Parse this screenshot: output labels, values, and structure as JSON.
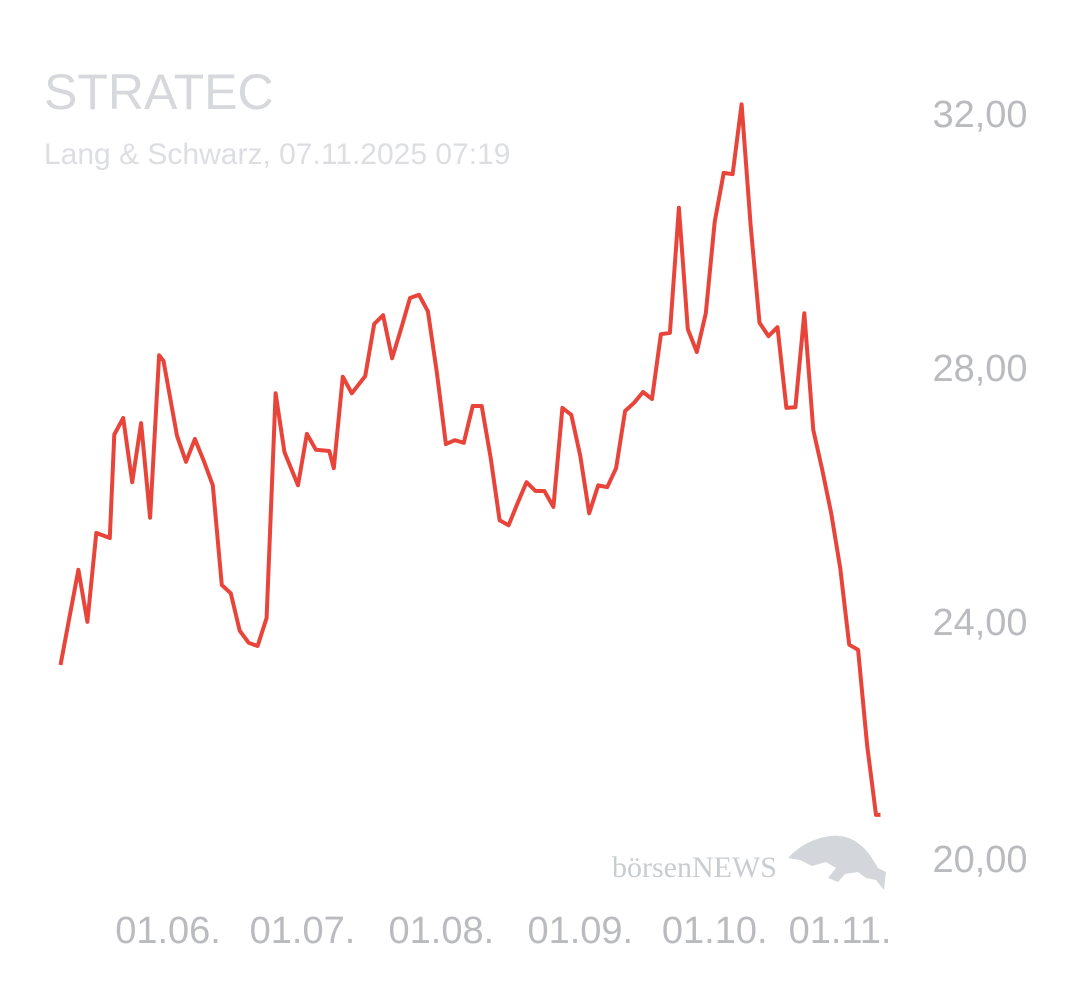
{
  "chart_data": {
    "type": "line",
    "title": "STRATEC",
    "subtitle": "Lang & Schwarz, 07.11.2025 07:19",
    "watermark": "börsenNEWS",
    "x": [
      "08.05.",
      "12.05.",
      "14.05.",
      "16.05.",
      "19.05.",
      "20.05.",
      "22.05.",
      "24.05.",
      "26.05.",
      "28.05.",
      "30.05.",
      "31.05.",
      "03.06.",
      "05.06.",
      "07.06.",
      "09.06.",
      "11.06.",
      "13.06.",
      "15.06.",
      "17.06.",
      "19.06.",
      "21.06.",
      "23.06.",
      "25.06.",
      "27.06.",
      "30.06.",
      "02.07.",
      "04.07.",
      "07.07.",
      "08.07.",
      "10.07.",
      "12.07.",
      "15.07.",
      "17.07.",
      "19.07.",
      "21.07.",
      "23.07.",
      "25.07.",
      "27.07.",
      "29.07.",
      "31.07.",
      "02.08.",
      "04.08.",
      "06.08.",
      "08.08.",
      "10.08.",
      "12.08.",
      "14.08.",
      "16.08.",
      "18.08.",
      "20.08.",
      "22.08.",
      "24.08.",
      "26.08.",
      "28.08.",
      "30.08.",
      "01.09.",
      "03.09.",
      "05.09.",
      "07.09.",
      "09.09.",
      "11.09.",
      "13.09.",
      "15.09.",
      "17.09.",
      "19.09.",
      "21.09.",
      "23.09.",
      "25.09.",
      "27.09.",
      "29.09.",
      "01.10.",
      "03.10.",
      "05.10.",
      "07.10.",
      "09.10.",
      "11.10.",
      "13.10.",
      "15.10.",
      "17.10.",
      "19.10.",
      "21.10.",
      "23.10.",
      "25.10.",
      "27.10.",
      "29.10.",
      "31.10.",
      "02.11.",
      "04.11.",
      "06.11.",
      "07.11."
    ],
    "series": [
      {
        "name": "STRATEC",
        "color": "#e8443a",
        "values": [
          23.37,
          24.87,
          24.05,
          25.45,
          25.37,
          27.0,
          27.26,
          26.25,
          27.18,
          25.69,
          28.25,
          28.16,
          26.98,
          26.57,
          26.93,
          26.58,
          26.2,
          24.63,
          24.5,
          23.91,
          23.72,
          23.67,
          24.11,
          27.65,
          26.72,
          26.2,
          27.01,
          26.76,
          26.74,
          26.47,
          27.91,
          27.65,
          27.92,
          28.74,
          28.88,
          28.2,
          28.66,
          29.15,
          29.2,
          28.94,
          27.97,
          26.85,
          26.91,
          26.87,
          27.45,
          27.45,
          26.63,
          25.65,
          25.57,
          25.92,
          26.25,
          26.11,
          26.11,
          25.86,
          27.42,
          27.31,
          26.66,
          25.76,
          26.2,
          26.17,
          26.47,
          27.37,
          27.5,
          27.67,
          27.56,
          28.58,
          28.6,
          30.57,
          28.66,
          28.3,
          28.91,
          30.35,
          31.12,
          31.1,
          32.2,
          30.3,
          28.76,
          28.55,
          28.69,
          27.42,
          27.43,
          28.91,
          27.07,
          26.44,
          25.76,
          24.9,
          23.69,
          23.61,
          22.11,
          21.01,
          21.01
        ]
      }
    ],
    "xlim": [
      "07.05.",
      "08.11."
    ],
    "xticks": [
      "01.06.",
      "01.07.",
      "01.08.",
      "01.09.",
      "01.10.",
      "01.11."
    ],
    "ylim": [
      20,
      32.3
    ],
    "yticks": [
      {
        "value": 32,
        "label": "32,00"
      },
      {
        "value": 28,
        "label": "28,00"
      },
      {
        "value": 24,
        "label": "24,00"
      },
      {
        "value": 20,
        "label": "20,00"
      }
    ],
    "grid": false
  }
}
